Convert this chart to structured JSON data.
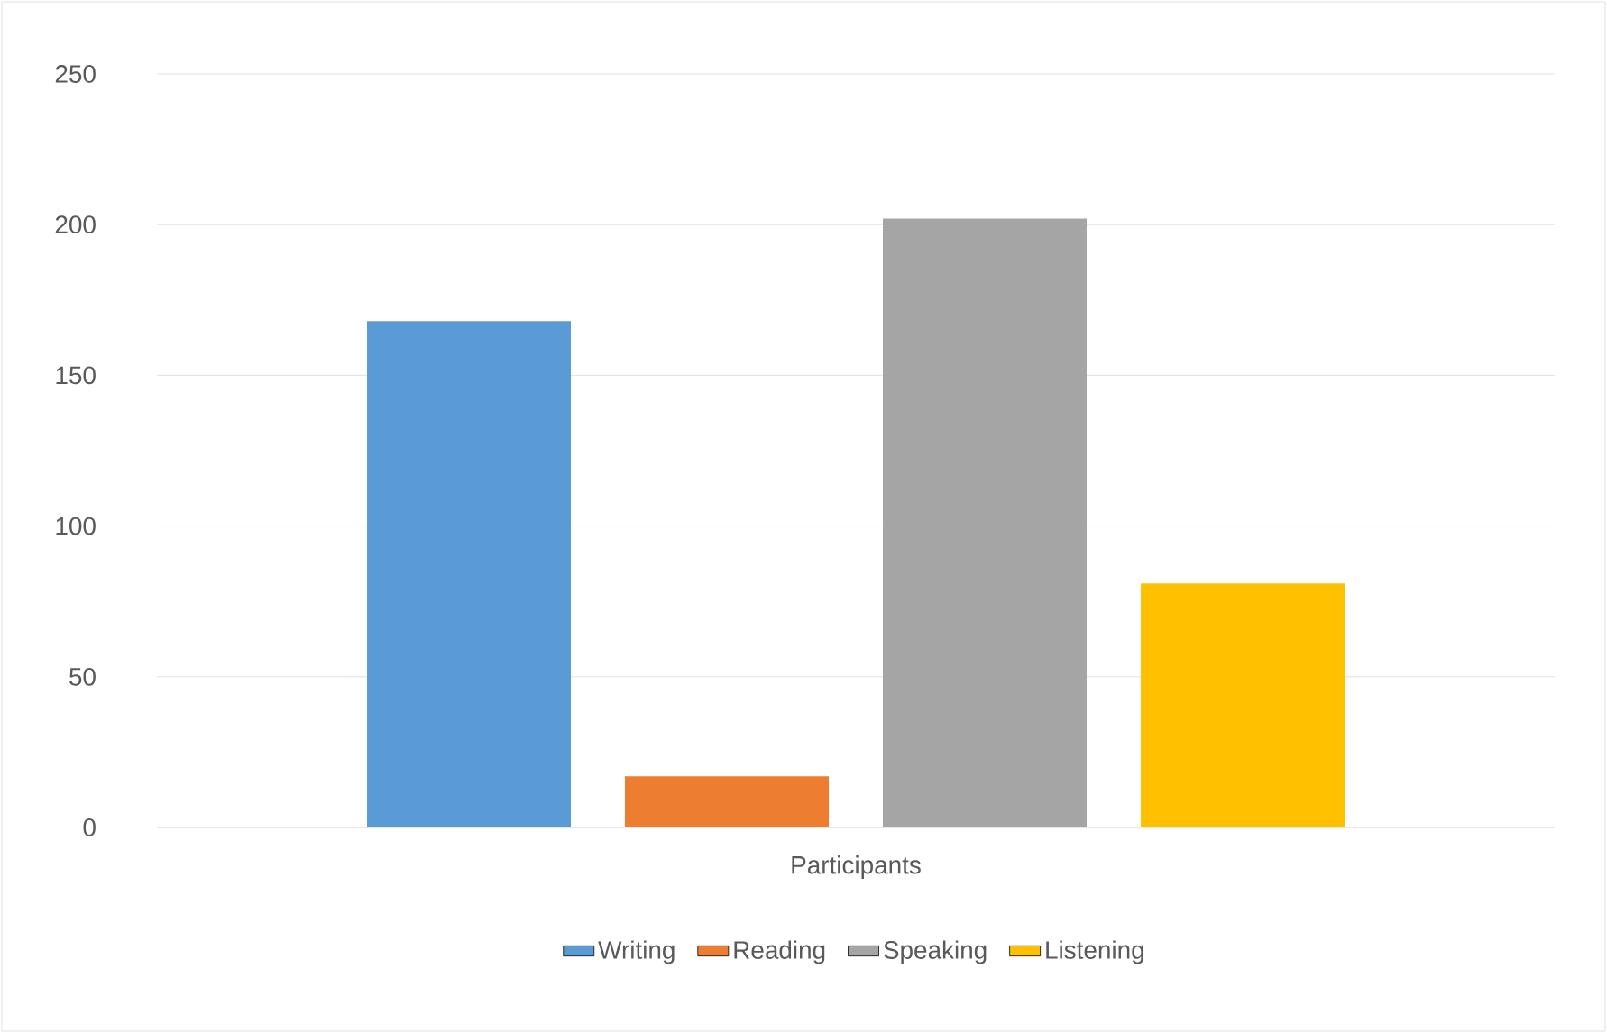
{
  "chart_data": {
    "type": "bar",
    "categories": [
      "Participants"
    ],
    "series": [
      {
        "name": "Writing",
        "color": "#5b9bd5",
        "values": [
          168
        ]
      },
      {
        "name": "Reading",
        "color": "#ed7d31",
        "values": [
          17
        ]
      },
      {
        "name": "Speaking",
        "color": "#a5a5a5",
        "values": [
          202
        ]
      },
      {
        "name": "Listening",
        "color": "#ffc000",
        "values": [
          81
        ]
      }
    ],
    "ylim": [
      0,
      250
    ],
    "yticks": [
      0,
      50,
      100,
      150,
      200,
      250
    ],
    "grid": "y",
    "legend": "bottom"
  }
}
